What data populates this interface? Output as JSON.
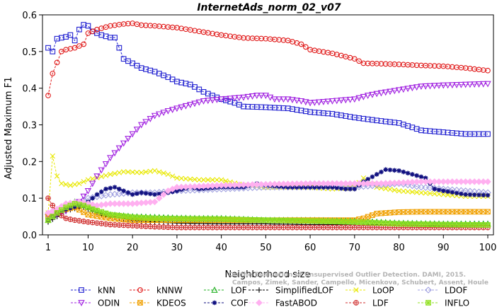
{
  "chart_data": {
    "type": "line",
    "title": "InternetAds_norm_02_v07",
    "xlabel": "Neighborhood size",
    "ylabel": "Adjusted Maximum F1",
    "xlim": [
      1,
      100
    ],
    "ylim": [
      0,
      0.6
    ],
    "x_ticks": [
      1,
      10,
      20,
      30,
      40,
      50,
      60,
      70,
      80,
      90,
      100
    ],
    "y_ticks": [
      0.0,
      0.1,
      0.2,
      0.3,
      0.4,
      0.5,
      0.6
    ],
    "x_tick_labels": [
      "1",
      "10",
      "20",
      "30",
      "40",
      "50",
      "60",
      "70",
      "80",
      "90",
      "100"
    ],
    "y_tick_labels": [
      "0.0",
      "0.1",
      "0.2",
      "0.3",
      "0.4",
      "0.5",
      "0.6"
    ],
    "grid": false,
    "legend_position": "bottom",
    "watermark_lines": [
      "Campos, Zimek, Sander, Campello, Micenkova, Schubert, Assent, Houle",
      "On the Evaluation of Unsupervised Outlier Detection. DAMI, 2015."
    ],
    "series": [
      {
        "name": "kNN",
        "color": "#1f1fd0",
        "marker": "square",
        "points": [
          [
            1,
            0.51
          ],
          [
            2,
            0.5
          ],
          [
            3,
            0.535
          ],
          [
            5,
            0.54
          ],
          [
            6,
            0.545
          ],
          [
            7,
            0.53
          ],
          [
            8,
            0.56
          ],
          [
            9,
            0.573
          ],
          [
            10,
            0.57
          ],
          [
            11,
            0.555
          ],
          [
            13,
            0.545
          ],
          [
            15,
            0.538
          ],
          [
            16,
            0.538
          ],
          [
            17,
            0.51
          ],
          [
            18,
            0.48
          ],
          [
            20,
            0.468
          ],
          [
            22,
            0.455
          ],
          [
            25,
            0.445
          ],
          [
            28,
            0.43
          ],
          [
            30,
            0.418
          ],
          [
            33,
            0.41
          ],
          [
            36,
            0.39
          ],
          [
            40,
            0.37
          ],
          [
            43,
            0.36
          ],
          [
            45,
            0.35
          ],
          [
            50,
            0.348
          ],
          [
            55,
            0.345
          ],
          [
            60,
            0.335
          ],
          [
            65,
            0.33
          ],
          [
            70,
            0.32
          ],
          [
            75,
            0.312
          ],
          [
            80,
            0.305
          ],
          [
            85,
            0.285
          ],
          [
            90,
            0.28
          ],
          [
            95,
            0.275
          ],
          [
            100,
            0.275
          ]
        ]
      },
      {
        "name": "kNNW",
        "color": "#e01818",
        "marker": "circle",
        "points": [
          [
            1,
            0.38
          ],
          [
            2,
            0.44
          ],
          [
            3,
            0.47
          ],
          [
            4,
            0.5
          ],
          [
            5,
            0.505
          ],
          [
            7,
            0.51
          ],
          [
            9,
            0.52
          ],
          [
            10,
            0.55
          ],
          [
            12,
            0.56
          ],
          [
            15,
            0.57
          ],
          [
            18,
            0.575
          ],
          [
            20,
            0.577
          ],
          [
            22,
            0.572
          ],
          [
            25,
            0.57
          ],
          [
            30,
            0.565
          ],
          [
            35,
            0.555
          ],
          [
            40,
            0.545
          ],
          [
            45,
            0.537
          ],
          [
            50,
            0.535
          ],
          [
            55,
            0.53
          ],
          [
            58,
            0.52
          ],
          [
            60,
            0.505
          ],
          [
            65,
            0.495
          ],
          [
            70,
            0.48
          ],
          [
            72,
            0.468
          ],
          [
            75,
            0.467
          ],
          [
            80,
            0.465
          ],
          [
            85,
            0.462
          ],
          [
            90,
            0.46
          ],
          [
            95,
            0.455
          ],
          [
            100,
            0.448
          ]
        ]
      },
      {
        "name": "LOF",
        "color": "#22b022",
        "marker": "triangle-up",
        "points": [
          [
            1,
            0.04
          ],
          [
            3,
            0.06
          ],
          [
            5,
            0.08
          ],
          [
            7,
            0.09
          ],
          [
            9,
            0.085
          ],
          [
            11,
            0.07
          ],
          [
            13,
            0.06
          ],
          [
            15,
            0.055
          ],
          [
            20,
            0.05
          ],
          [
            25,
            0.048
          ],
          [
            30,
            0.046
          ],
          [
            35,
            0.045
          ],
          [
            40,
            0.045
          ],
          [
            50,
            0.04
          ],
          [
            60,
            0.04
          ],
          [
            70,
            0.038
          ],
          [
            80,
            0.032
          ],
          [
            90,
            0.03
          ],
          [
            100,
            0.03
          ]
        ]
      },
      {
        "name": "SimplifiedLOF",
        "color": "#000000",
        "marker": "plus",
        "points": [
          [
            1,
            0.035
          ],
          [
            3,
            0.05
          ],
          [
            5,
            0.065
          ],
          [
            7,
            0.072
          ],
          [
            9,
            0.075
          ],
          [
            11,
            0.065
          ],
          [
            15,
            0.05
          ],
          [
            20,
            0.04
          ],
          [
            25,
            0.035
          ],
          [
            30,
            0.032
          ],
          [
            40,
            0.03
          ],
          [
            50,
            0.03
          ],
          [
            60,
            0.028
          ],
          [
            70,
            0.028
          ],
          [
            80,
            0.027
          ],
          [
            90,
            0.025
          ],
          [
            100,
            0.025
          ]
        ]
      },
      {
        "name": "LoOP",
        "color": "#e8e800",
        "marker": "x",
        "points": [
          [
            1,
            0.06
          ],
          [
            2,
            0.215
          ],
          [
            3,
            0.16
          ],
          [
            4,
            0.14
          ],
          [
            6,
            0.135
          ],
          [
            8,
            0.14
          ],
          [
            10,
            0.15
          ],
          [
            15,
            0.165
          ],
          [
            18,
            0.172
          ],
          [
            22,
            0.17
          ],
          [
            25,
            0.175
          ],
          [
            28,
            0.165
          ],
          [
            30,
            0.155
          ],
          [
            35,
            0.15
          ],
          [
            40,
            0.15
          ],
          [
            45,
            0.135
          ],
          [
            50,
            0.13
          ],
          [
            55,
            0.13
          ],
          [
            60,
            0.13
          ],
          [
            65,
            0.125
          ],
          [
            70,
            0.13
          ],
          [
            72,
            0.155
          ],
          [
            75,
            0.13
          ],
          [
            80,
            0.12
          ],
          [
            85,
            0.115
          ],
          [
            90,
            0.11
          ],
          [
            95,
            0.105
          ],
          [
            100,
            0.105
          ]
        ]
      },
      {
        "name": "LDOF",
        "color": "#a0a0e0",
        "marker": "diamond",
        "points": [
          [
            1,
            0.055
          ],
          [
            3,
            0.065
          ],
          [
            5,
            0.08
          ],
          [
            8,
            0.09
          ],
          [
            10,
            0.1
          ],
          [
            15,
            0.11
          ],
          [
            20,
            0.115
          ],
          [
            25,
            0.115
          ],
          [
            30,
            0.12
          ],
          [
            40,
            0.125
          ],
          [
            50,
            0.13
          ],
          [
            60,
            0.13
          ],
          [
            70,
            0.13
          ],
          [
            75,
            0.135
          ],
          [
            80,
            0.14
          ],
          [
            85,
            0.13
          ],
          [
            90,
            0.125
          ],
          [
            95,
            0.12
          ],
          [
            100,
            0.115
          ]
        ]
      },
      {
        "name": "ODIN",
        "color": "#a020e0",
        "marker": "triangle-down",
        "points": [
          [
            1,
            0.05
          ],
          [
            5,
            0.065
          ],
          [
            8,
            0.09
          ],
          [
            10,
            0.12
          ],
          [
            12,
            0.16
          ],
          [
            15,
            0.21
          ],
          [
            18,
            0.25
          ],
          [
            20,
            0.275
          ],
          [
            22,
            0.3
          ],
          [
            25,
            0.325
          ],
          [
            28,
            0.338
          ],
          [
            30,
            0.345
          ],
          [
            33,
            0.355
          ],
          [
            36,
            0.365
          ],
          [
            40,
            0.37
          ],
          [
            45,
            0.375
          ],
          [
            48,
            0.38
          ],
          [
            50,
            0.38
          ],
          [
            52,
            0.37
          ],
          [
            55,
            0.37
          ],
          [
            58,
            0.365
          ],
          [
            60,
            0.36
          ],
          [
            65,
            0.365
          ],
          [
            70,
            0.37
          ],
          [
            73,
            0.38
          ],
          [
            75,
            0.385
          ],
          [
            80,
            0.395
          ],
          [
            85,
            0.405
          ],
          [
            90,
            0.408
          ],
          [
            95,
            0.41
          ],
          [
            100,
            0.412
          ]
        ]
      },
      {
        "name": "KDEOS",
        "color": "#f0a000",
        "marker": "square-x",
        "points": [
          [
            1,
            0.05
          ],
          [
            3,
            0.065
          ],
          [
            5,
            0.07
          ],
          [
            7,
            0.075
          ],
          [
            10,
            0.055
          ],
          [
            15,
            0.045
          ],
          [
            20,
            0.04
          ],
          [
            25,
            0.04
          ],
          [
            30,
            0.04
          ],
          [
            40,
            0.04
          ],
          [
            50,
            0.04
          ],
          [
            60,
            0.04
          ],
          [
            70,
            0.04
          ],
          [
            72,
            0.045
          ],
          [
            75,
            0.058
          ],
          [
            80,
            0.062
          ],
          [
            85,
            0.063
          ],
          [
            90,
            0.063
          ],
          [
            95,
            0.063
          ],
          [
            100,
            0.063
          ]
        ]
      },
      {
        "name": "COF",
        "color": "#101080",
        "marker": "asterisk",
        "points": [
          [
            1,
            0.04
          ],
          [
            3,
            0.06
          ],
          [
            5,
            0.07
          ],
          [
            8,
            0.08
          ],
          [
            10,
            0.09
          ],
          [
            12,
            0.11
          ],
          [
            14,
            0.125
          ],
          [
            16,
            0.13
          ],
          [
            18,
            0.12
          ],
          [
            20,
            0.11
          ],
          [
            22,
            0.115
          ],
          [
            25,
            0.11
          ],
          [
            28,
            0.115
          ],
          [
            30,
            0.12
          ],
          [
            33,
            0.13
          ],
          [
            35,
            0.125
          ],
          [
            40,
            0.13
          ],
          [
            45,
            0.13
          ],
          [
            48,
            0.14
          ],
          [
            50,
            0.135
          ],
          [
            55,
            0.13
          ],
          [
            60,
            0.13
          ],
          [
            65,
            0.13
          ],
          [
            68,
            0.125
          ],
          [
            70,
            0.125
          ],
          [
            72,
            0.145
          ],
          [
            75,
            0.165
          ],
          [
            77,
            0.178
          ],
          [
            80,
            0.175
          ],
          [
            83,
            0.165
          ],
          [
            86,
            0.155
          ],
          [
            88,
            0.125
          ],
          [
            90,
            0.12
          ],
          [
            95,
            0.11
          ],
          [
            100,
            0.108
          ]
        ]
      },
      {
        "name": "FastABOD",
        "color": "#ffb0f0",
        "marker": "diamond-filled",
        "points": [
          [
            1,
            0.06
          ],
          [
            3,
            0.07
          ],
          [
            5,
            0.085
          ],
          [
            8,
            0.09
          ],
          [
            10,
            0.085
          ],
          [
            12,
            0.08
          ],
          [
            15,
            0.085
          ],
          [
            20,
            0.085
          ],
          [
            25,
            0.09
          ],
          [
            28,
            0.12
          ],
          [
            30,
            0.13
          ],
          [
            40,
            0.135
          ],
          [
            50,
            0.138
          ],
          [
            60,
            0.14
          ],
          [
            70,
            0.14
          ],
          [
            75,
            0.14
          ],
          [
            80,
            0.142
          ],
          [
            85,
            0.145
          ],
          [
            90,
            0.145
          ],
          [
            95,
            0.145
          ],
          [
            100,
            0.145
          ]
        ]
      },
      {
        "name": "LDF",
        "color": "#d03030",
        "marker": "circle-cross",
        "points": [
          [
            1,
            0.1
          ],
          [
            2,
            0.08
          ],
          [
            3,
            0.06
          ],
          [
            5,
            0.045
          ],
          [
            7,
            0.04
          ],
          [
            10,
            0.035
          ],
          [
            15,
            0.028
          ],
          [
            20,
            0.025
          ],
          [
            25,
            0.022
          ],
          [
            30,
            0.02
          ],
          [
            40,
            0.02
          ],
          [
            50,
            0.02
          ],
          [
            60,
            0.02
          ],
          [
            70,
            0.02
          ],
          [
            80,
            0.02
          ],
          [
            90,
            0.02
          ],
          [
            100,
            0.02
          ]
        ]
      },
      {
        "name": "INFLO",
        "color": "#90e020",
        "marker": "star-box",
        "points": [
          [
            1,
            0.04
          ],
          [
            3,
            0.06
          ],
          [
            5,
            0.075
          ],
          [
            7,
            0.085
          ],
          [
            9,
            0.08
          ],
          [
            11,
            0.07
          ],
          [
            15,
            0.055
          ],
          [
            20,
            0.048
          ],
          [
            25,
            0.045
          ],
          [
            30,
            0.044
          ],
          [
            40,
            0.043
          ],
          [
            50,
            0.04
          ],
          [
            60,
            0.038
          ],
          [
            70,
            0.035
          ],
          [
            80,
            0.03
          ],
          [
            90,
            0.028
          ],
          [
            100,
            0.027
          ]
        ]
      }
    ]
  }
}
